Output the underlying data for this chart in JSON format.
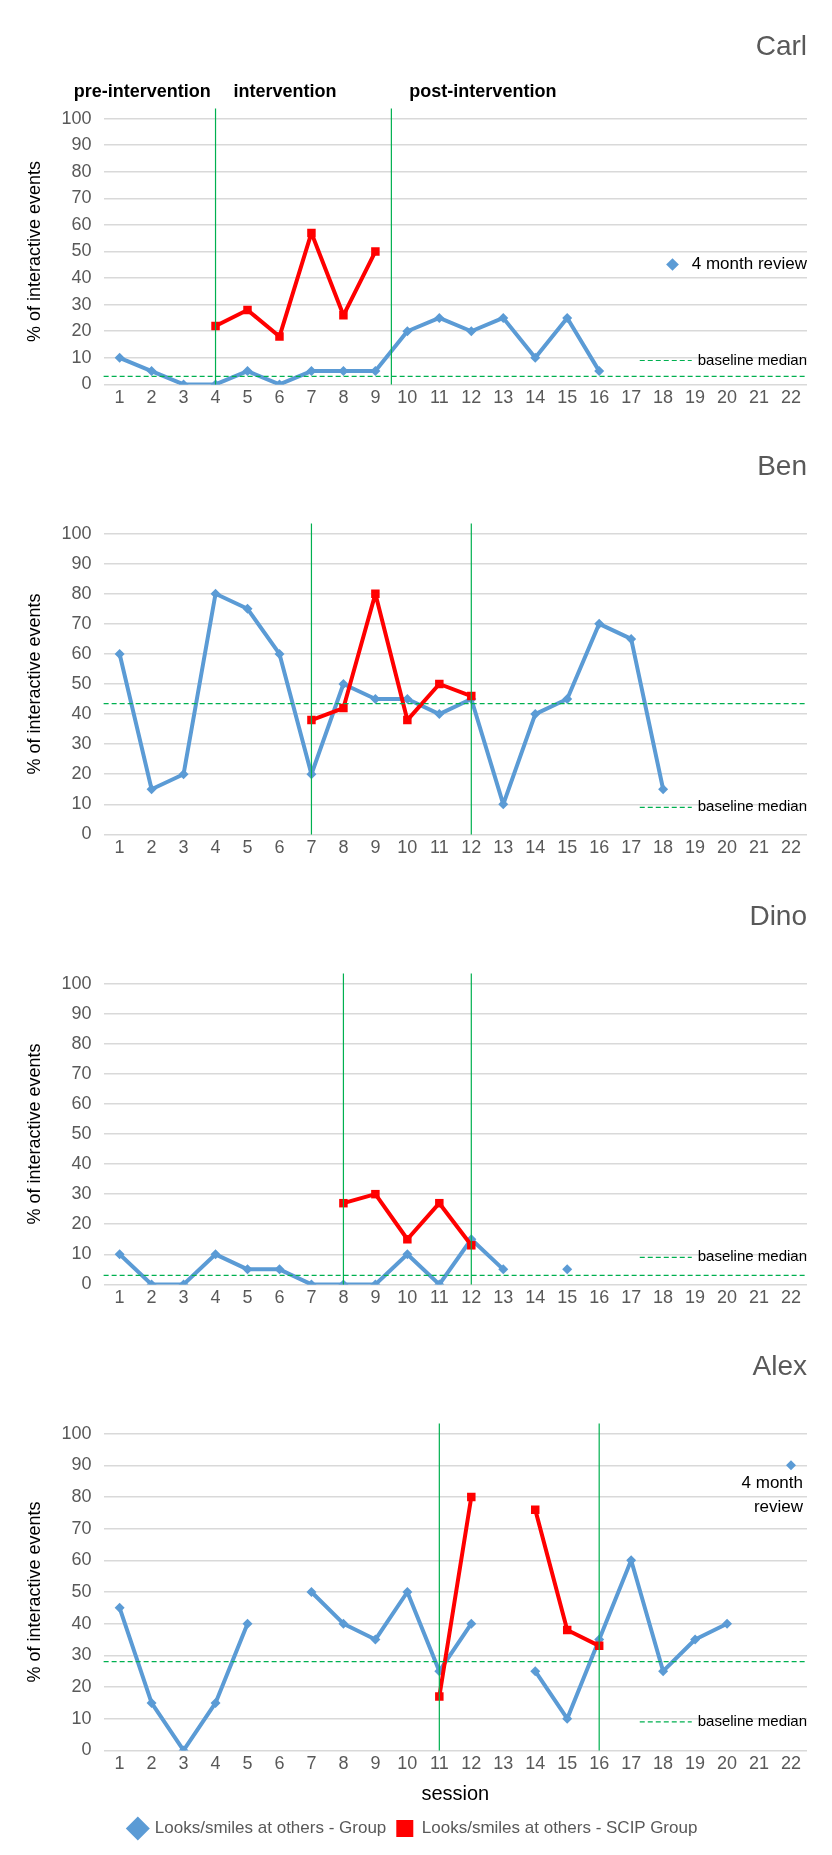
{
  "chart_data": [
    {
      "type": "line",
      "title": "Carl",
      "ylabel": "% of interactive events",
      "x": [
        1,
        2,
        3,
        4,
        5,
        6,
        7,
        8,
        9,
        10,
        11,
        12,
        13,
        14,
        15,
        16
      ],
      "xlim": [
        0.5,
        22.5
      ],
      "xticks": [
        1,
        2,
        3,
        4,
        5,
        6,
        7,
        8,
        9,
        10,
        11,
        12,
        13,
        14,
        15,
        16,
        17,
        18,
        19,
        20,
        21,
        22
      ],
      "ylim": [
        0,
        100
      ],
      "yticks": [
        0,
        10,
        20,
        30,
        40,
        50,
        60,
        70,
        80,
        90,
        100
      ],
      "grid": "y",
      "series": [
        {
          "color": "#5b9bd5",
          "marker": "diamond",
          "values": [
            10,
            5,
            0,
            0,
            5,
            0,
            5,
            5,
            5,
            20,
            25,
            20,
            25,
            10,
            25,
            5
          ]
        },
        {
          "color": "#ff0000",
          "marker": "square",
          "values": [
            null,
            null,
            null,
            22,
            28,
            18,
            57,
            26,
            50,
            null,
            null,
            null,
            null,
            null,
            null,
            null
          ]
        }
      ],
      "ref_lines": [
        {
          "axis": "x",
          "value": 4,
          "color": "#00b050"
        },
        {
          "axis": "x",
          "value": 9.5,
          "color": "#00b050"
        },
        {
          "axis": "y",
          "value": 3,
          "label": "baseline median",
          "color": "#00b050",
          "line_style": "dashed"
        }
      ],
      "annotations": [
        "pre-intervention",
        "intervention",
        "post-intervention",
        "4 month review"
      ]
    },
    {
      "type": "line",
      "title": "Ben",
      "ylabel": "% of interactive events",
      "x": [
        1,
        2,
        3,
        4,
        5,
        6,
        7,
        8,
        9,
        10,
        11,
        12,
        13,
        14,
        15,
        16,
        17,
        18
      ],
      "xlim": [
        0.5,
        22.5
      ],
      "xticks": [
        1,
        2,
        3,
        4,
        5,
        6,
        7,
        8,
        9,
        10,
        11,
        12,
        13,
        14,
        15,
        16,
        17,
        18,
        19,
        20,
        21,
        22
      ],
      "ylim": [
        0,
        100
      ],
      "yticks": [
        0,
        10,
        20,
        30,
        40,
        50,
        60,
        70,
        80,
        90,
        100
      ],
      "grid": "y",
      "series": [
        {
          "color": "#5b9bd5",
          "marker": "diamond",
          "values": [
            60,
            15,
            20,
            80,
            75,
            60,
            20,
            50,
            45,
            45,
            40,
            45,
            10,
            40,
            45,
            70,
            65,
            15
          ]
        },
        {
          "color": "#ff0000",
          "marker": "square",
          "values": [
            null,
            null,
            null,
            null,
            null,
            null,
            38,
            42,
            80,
            38,
            50,
            46,
            null,
            null,
            null,
            null,
            null,
            null
          ]
        }
      ],
      "ref_lines": [
        {
          "axis": "x",
          "value": 7,
          "color": "#00b050"
        },
        {
          "axis": "x",
          "value": 12,
          "color": "#00b050"
        },
        {
          "axis": "y",
          "value": 43.5,
          "label": "baseline median",
          "color": "#00b050",
          "line_style": "dashed"
        }
      ]
    },
    {
      "type": "line",
      "title": "Dino",
      "ylabel": "% of interactive events",
      "x": [
        1,
        2,
        3,
        4,
        5,
        6,
        7,
        8,
        9,
        10,
        11,
        12,
        13,
        14,
        15
      ],
      "xlim": [
        0.5,
        22.5
      ],
      "xticks": [
        1,
        2,
        3,
        4,
        5,
        6,
        7,
        8,
        9,
        10,
        11,
        12,
        13,
        14,
        15,
        16,
        17,
        18,
        19,
        20,
        21,
        22
      ],
      "ylim": [
        0,
        100
      ],
      "yticks": [
        0,
        10,
        20,
        30,
        40,
        50,
        60,
        70,
        80,
        90,
        100
      ],
      "grid": "y",
      "series": [
        {
          "color": "#5b9bd5",
          "marker": "diamond",
          "values": [
            10,
            0,
            0,
            10,
            5,
            5,
            0,
            0,
            0,
            10,
            0,
            15,
            5,
            null,
            5
          ]
        },
        {
          "color": "#ff0000",
          "marker": "square",
          "values": [
            null,
            null,
            null,
            null,
            null,
            null,
            null,
            27,
            30,
            15,
            27,
            13,
            null,
            null,
            null
          ]
        }
      ],
      "ref_lines": [
        {
          "axis": "x",
          "value": 8,
          "color": "#00b050"
        },
        {
          "axis": "x",
          "value": 12,
          "color": "#00b050"
        },
        {
          "axis": "y",
          "value": 3,
          "label": "baseline median",
          "color": "#00b050",
          "line_style": "dashed"
        }
      ]
    },
    {
      "type": "line",
      "title": "Alex",
      "xlabel": "session",
      "ylabel": "% of interactive events",
      "x": [
        1,
        2,
        3,
        4,
        5,
        6,
        7,
        8,
        9,
        10,
        11,
        12,
        13,
        14,
        15,
        16,
        17,
        18,
        19,
        20,
        21,
        22
      ],
      "xlim": [
        0.5,
        22.5
      ],
      "xticks": [
        1,
        2,
        3,
        4,
        5,
        6,
        7,
        8,
        9,
        10,
        11,
        12,
        13,
        14,
        15,
        16,
        17,
        18,
        19,
        20,
        21,
        22
      ],
      "ylim": [
        0,
        100
      ],
      "yticks": [
        0,
        10,
        20,
        30,
        40,
        50,
        60,
        70,
        80,
        90,
        100
      ],
      "grid": "y",
      "legend": "bottom",
      "series": [
        {
          "name": "Looks/smiles at others - Group",
          "color": "#5b9bd5",
          "marker": "diamond",
          "values": [
            45,
            15,
            0,
            15,
            40,
            null,
            50,
            40,
            35,
            50,
            25,
            40,
            null,
            25,
            10,
            35,
            60,
            25,
            35,
            40,
            null,
            90
          ]
        },
        {
          "name": "Looks/smiles at others - SCIP Group",
          "color": "#ff0000",
          "marker": "square",
          "values": [
            null,
            null,
            null,
            null,
            null,
            null,
            null,
            null,
            null,
            null,
            17,
            80,
            null,
            76,
            38,
            33,
            null,
            null,
            null,
            null,
            null,
            null
          ]
        }
      ],
      "ref_lines": [
        {
          "axis": "x",
          "value": 11,
          "color": "#00b050"
        },
        {
          "axis": "x",
          "value": 16,
          "color": "#00b050"
        },
        {
          "axis": "y",
          "value": 28,
          "label": "baseline median",
          "color": "#00b050",
          "line_style": "dashed"
        }
      ],
      "annotations": [
        {
          "text": "4 month review",
          "x": 22,
          "y": 90
        }
      ]
    }
  ]
}
